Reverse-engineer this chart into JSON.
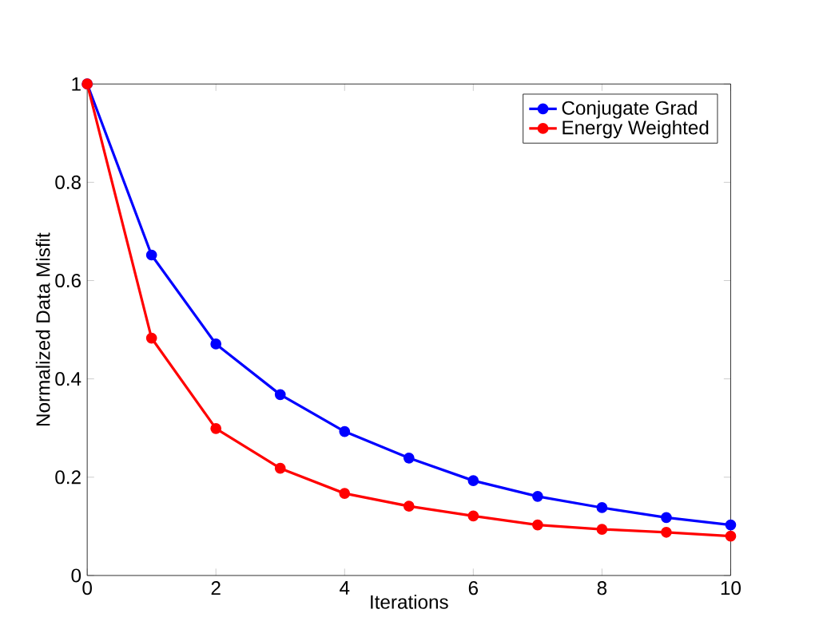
{
  "chart_data": {
    "type": "line",
    "xlabel": "Iterations",
    "ylabel": "Normalized Data Misfit",
    "x": [
      0,
      1,
      2,
      3,
      4,
      5,
      6,
      7,
      8,
      9,
      10
    ],
    "series": [
      {
        "name": "Conjugate Grad",
        "color": "#0000ff",
        "values": [
          1,
          0.652,
          0.471,
          0.368,
          0.293,
          0.239,
          0.193,
          0.161,
          0.138,
          0.118,
          0.103
        ]
      },
      {
        "name": "Energy Weighted",
        "color": "#ff0000",
        "values": [
          1,
          0.483,
          0.299,
          0.218,
          0.167,
          0.141,
          0.121,
          0.103,
          0.094,
          0.088,
          0.08
        ]
      }
    ],
    "xlim": [
      0,
      10
    ],
    "ylim": [
      0,
      1
    ],
    "xticks": [
      0,
      2,
      4,
      6,
      8,
      10
    ],
    "yticks": [
      0,
      0.2,
      0.4,
      0.6,
      0.8,
      1
    ],
    "legend": "top right",
    "marker": "circle",
    "line_style": "solid",
    "grid": false
  }
}
